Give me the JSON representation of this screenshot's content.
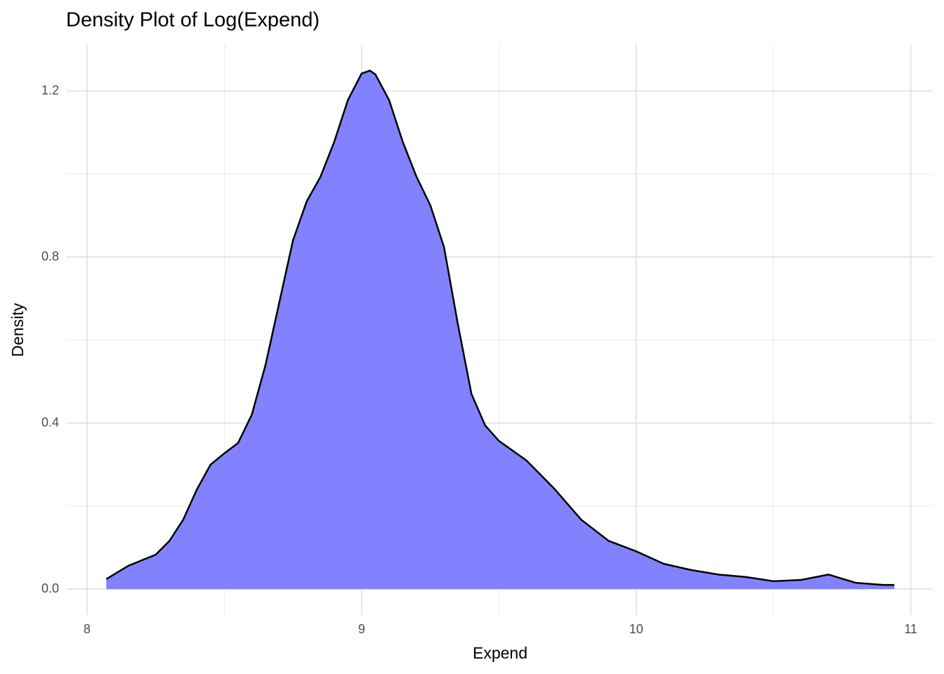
{
  "chart_data": {
    "type": "area",
    "title": "Density Plot of Log(Expend)",
    "x_label": "Expend",
    "y_label": "Density",
    "x": [
      8.07,
      8.15,
      8.25,
      8.3,
      8.35,
      8.4,
      8.45,
      8.5,
      8.55,
      8.6,
      8.65,
      8.7,
      8.75,
      8.8,
      8.85,
      8.9,
      8.95,
      9.0,
      9.03,
      9.05,
      9.1,
      9.15,
      9.2,
      9.25,
      9.3,
      9.35,
      9.4,
      9.45,
      9.5,
      9.6,
      9.7,
      9.8,
      9.9,
      10.0,
      10.1,
      10.2,
      10.3,
      10.4,
      10.5,
      10.6,
      10.7,
      10.8,
      10.9,
      10.94
    ],
    "values": [
      0.024,
      0.056,
      0.083,
      0.116,
      0.167,
      0.24,
      0.3,
      0.327,
      0.352,
      0.42,
      0.54,
      0.69,
      0.84,
      0.934,
      0.993,
      1.077,
      1.178,
      1.242,
      1.249,
      1.24,
      1.178,
      1.077,
      0.993,
      0.925,
      0.824,
      0.64,
      0.47,
      0.394,
      0.357,
      0.31,
      0.243,
      0.167,
      0.116,
      0.091,
      0.061,
      0.046,
      0.035,
      0.029,
      0.019,
      0.022,
      0.035,
      0.015,
      0.01,
      0.01
    ],
    "color": "#8080ff",
    "line_color": "#000000",
    "xlim": [
      7.926,
      11.08
    ],
    "ylim": [
      -0.0625,
      1.3125
    ],
    "xticks": [
      8,
      9,
      10,
      11
    ],
    "yticks": [
      {
        "value": 0,
        "label": "0.0"
      },
      0.4,
      0.8,
      1.2
    ],
    "x_minor_grid": [
      8.5,
      9.5,
      10.5
    ],
    "y_minor_grid": [
      0.2,
      0.6,
      1.0
    ],
    "grid": true
  }
}
